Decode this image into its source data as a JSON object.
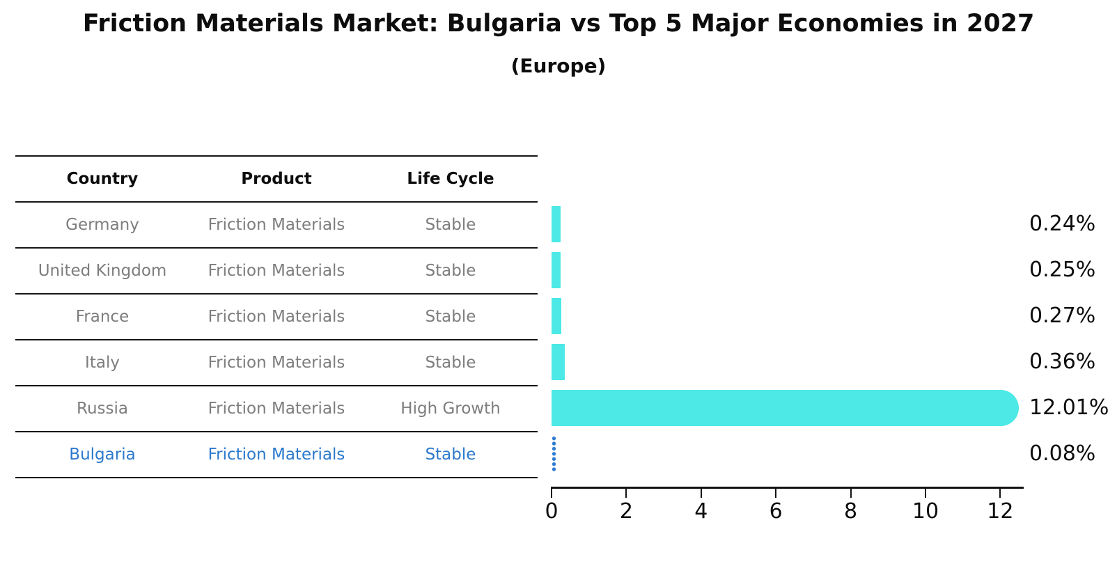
{
  "title": "Friction Materials Market: Bulgaria vs Top 5 Major Economies in 2027",
  "subtitle": "(Europe)",
  "table": {
    "headers": [
      "Country",
      "Product",
      "Life Cycle"
    ],
    "rows": [
      {
        "country": "Germany",
        "product": "Friction Materials",
        "life_cycle": "Stable",
        "css": "trow"
      },
      {
        "country": "United Kingdom",
        "product": "Friction Materials",
        "life_cycle": "Stable",
        "css": "trow"
      },
      {
        "country": "France",
        "product": "Friction Materials",
        "life_cycle": "Stable",
        "css": "trow"
      },
      {
        "country": "Italy",
        "product": "Friction Materials",
        "life_cycle": "Stable",
        "css": "trow"
      },
      {
        "country": "Russia",
        "product": "Friction Materials",
        "life_cycle": "High Growth",
        "css": "trow"
      },
      {
        "country": "Bulgaria",
        "product": "Friction Materials",
        "life_cycle": "Stable",
        "css": "trow highlight"
      }
    ]
  },
  "chart_data": {
    "type": "bar",
    "orientation": "horizontal",
    "title": "Friction Materials Market: Bulgaria vs Top 5 Major Economies in 2027",
    "subtitle": "(Europe)",
    "categories": [
      "Germany",
      "United Kingdom",
      "France",
      "Italy",
      "Russia",
      "Bulgaria"
    ],
    "values": [
      0.24,
      0.25,
      0.27,
      0.36,
      12.01,
      0.08
    ],
    "labels": [
      "0.24%",
      "0.25%",
      "0.27%",
      "0.36%",
      "12.01%",
      "0.08%"
    ],
    "x_ticks": [
      0,
      2,
      4,
      6,
      8,
      10,
      12
    ],
    "xlim": [
      0,
      12.63
    ],
    "grid": false,
    "legend": "none",
    "bar_color": "#4ce9e6",
    "highlight_index": 5,
    "highlight_style": "dotted",
    "highlight_color": "#2e7dd1"
  },
  "colors": {
    "background": "#ffffff",
    "text": "#0d0d0d",
    "table_text": "#7d7d7d",
    "table_line": "#151515",
    "bar": "#4ce9e6",
    "highlight_blue": "#2b79cc"
  }
}
